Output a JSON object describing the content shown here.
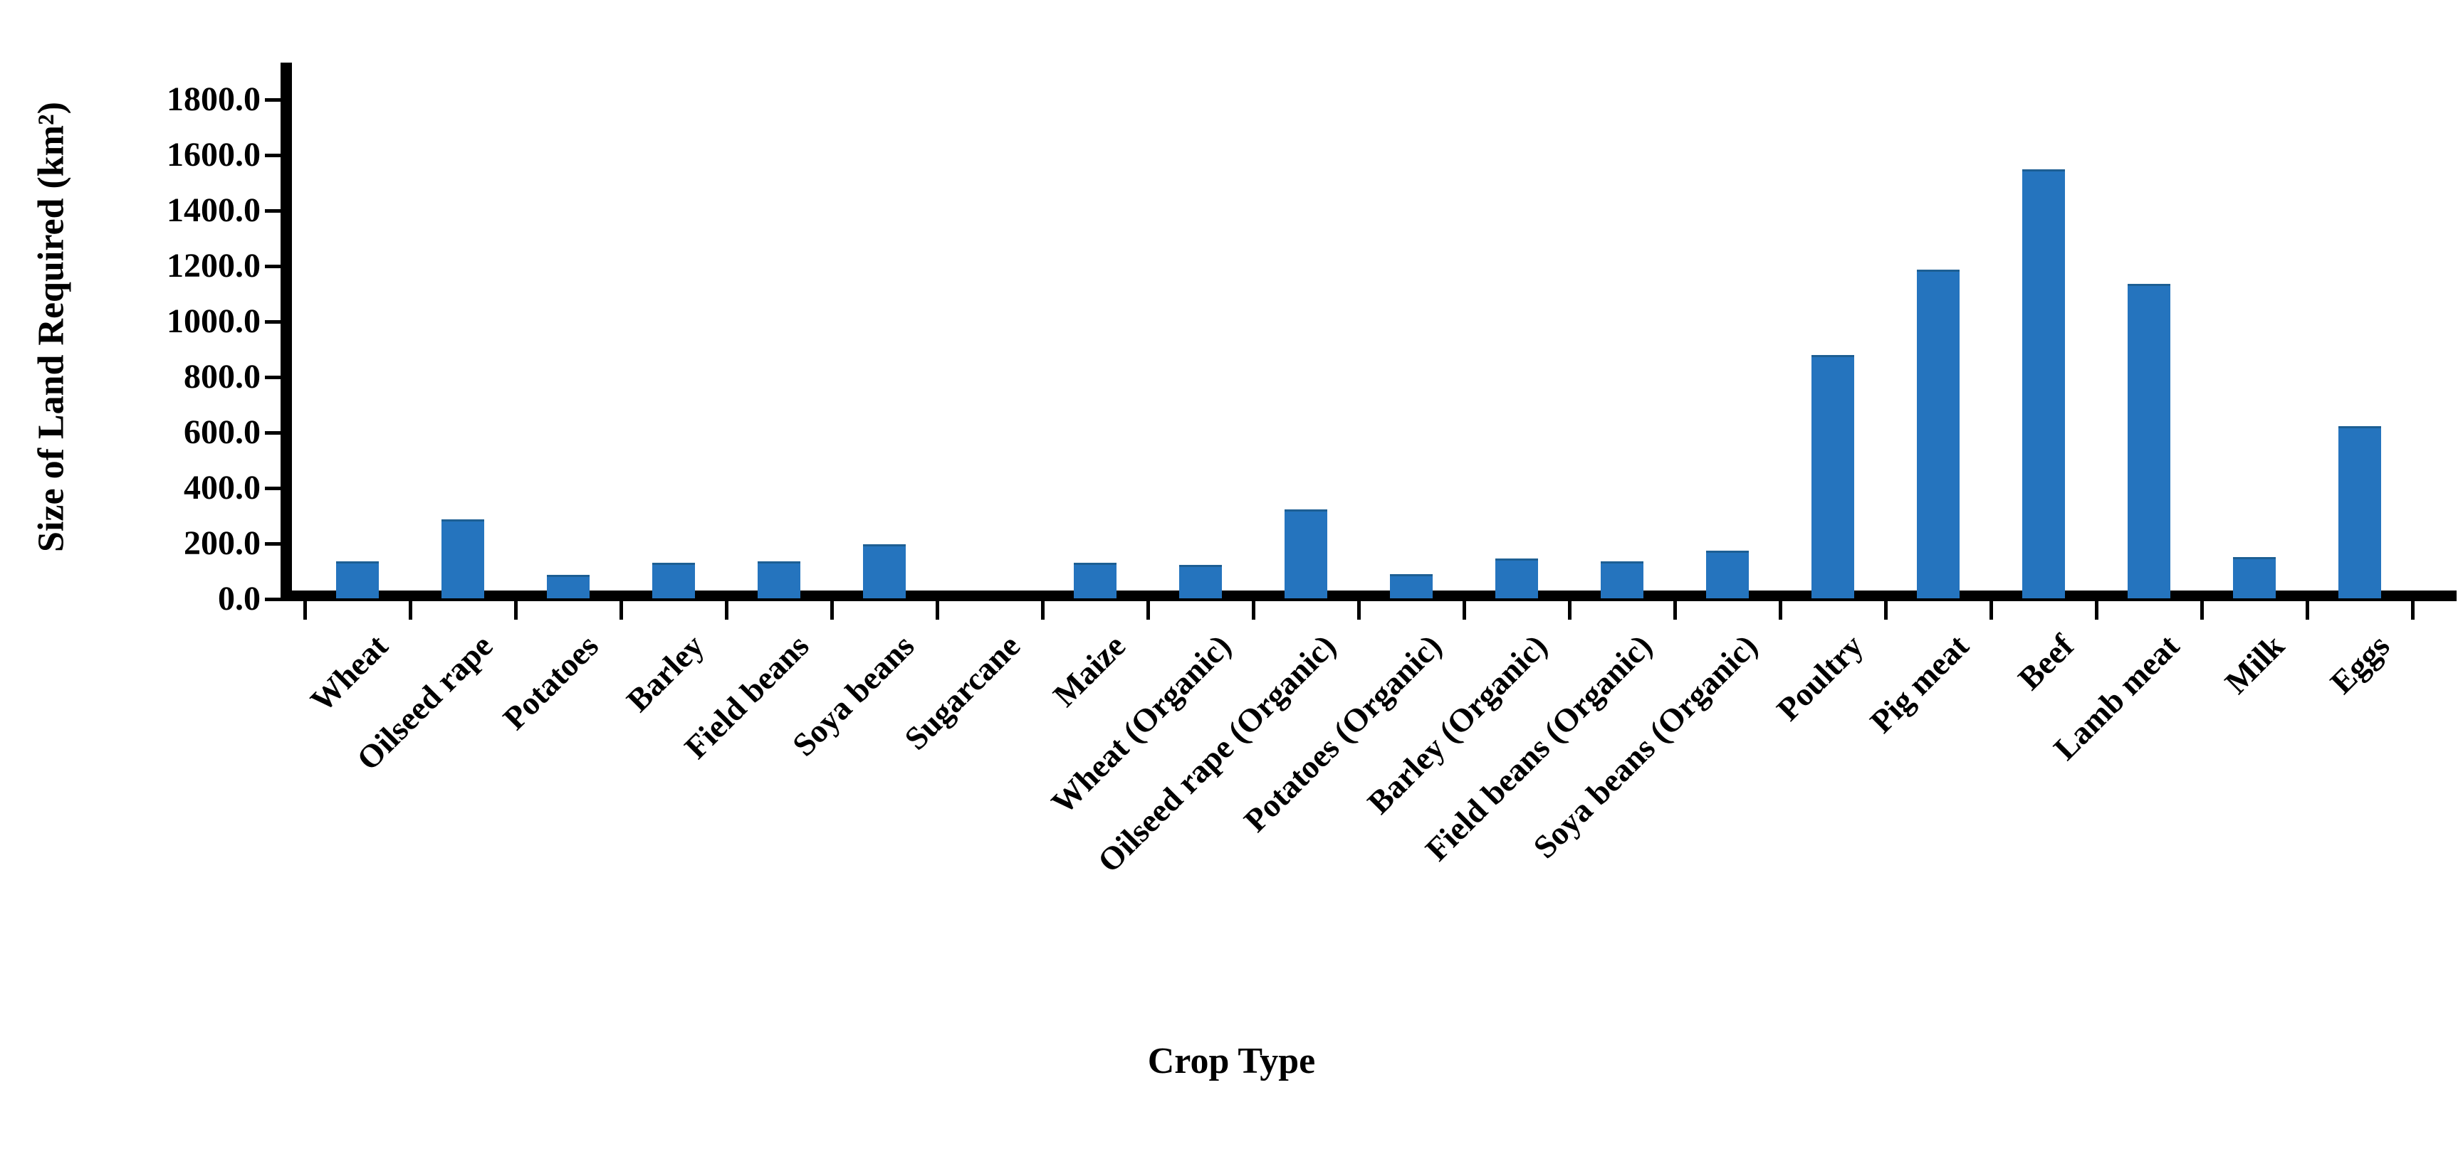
{
  "chart_data": {
    "type": "bar",
    "title": "",
    "xlabel": "Crop Type",
    "ylabel": "Size of Land Required (km²)",
    "categories": [
      "Wheat",
      "Oilseed rape",
      "Potatoes",
      "Barley",
      "Field beans",
      "Soya beans",
      "Sugarcane",
      "Maize",
      "Wheat (Organic)",
      "Oilseed rape (Organic)",
      "Potatoes (Organic)",
      "Barley (Organic)",
      "Field beans (Organic)",
      "Soya beans (Organic)",
      "Poultry",
      "Pig meat",
      "Beef",
      "Lamb meat",
      "Milk",
      "Eggs"
    ],
    "values": [
      125,
      276,
      77,
      120,
      126,
      187,
      0,
      120,
      112,
      313,
      79,
      135,
      125,
      165,
      868,
      1177,
      1539,
      1126,
      141,
      613
    ],
    "ylim": [
      0,
      1800
    ],
    "ytick_step": 200,
    "ytick_labels": [
      "0.0",
      "200.0",
      "400.0",
      "600.0",
      "800.0",
      "1000.0",
      "1200.0",
      "1400.0",
      "1600.0",
      "1800.0"
    ],
    "bar_color": "#2574be",
    "bar_edge_color": "#1d5f94",
    "axis_color": "#000000",
    "grid": false,
    "legend_position": "none"
  }
}
